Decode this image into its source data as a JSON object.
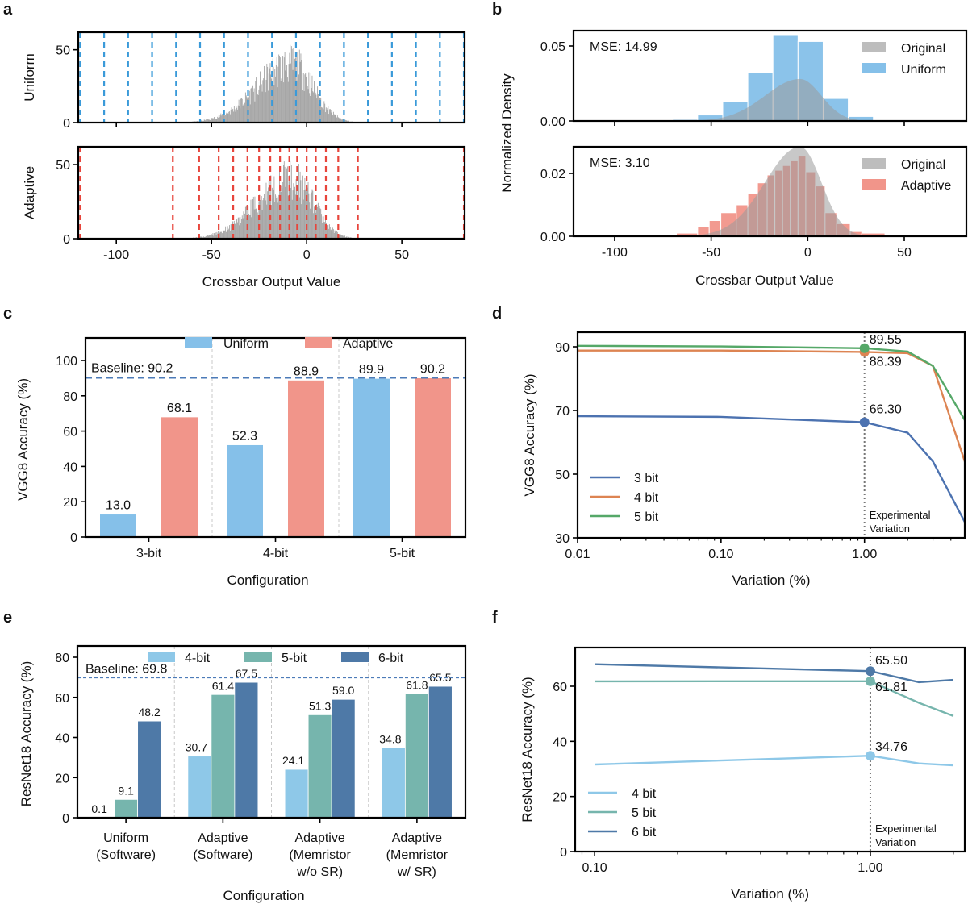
{
  "panel_labels": [
    "a",
    "b",
    "c",
    "d",
    "e",
    "f"
  ],
  "chart_data": [
    {
      "id": "a",
      "type": "bar",
      "subtype": "histogram-with-quantization-levels",
      "subplots": [
        {
          "name": "Uniform",
          "ylabel": "Uniform",
          "yticks": [
            0,
            50
          ],
          "ylim": [
            0,
            62
          ],
          "level_color": "#3a9ad9",
          "levels": [
            -119.0,
            -106.4,
            -93.8,
            -81.2,
            -68.6,
            -56.0,
            -43.4,
            -30.8,
            -18.2,
            -5.6,
            7.0,
            19.6,
            32.2,
            44.8,
            57.4,
            70.0,
            82.6
          ]
        },
        {
          "name": "Adaptive",
          "ylabel": "Adaptive",
          "yticks": [
            0,
            50
          ],
          "ylim": [
            0,
            62
          ],
          "level_color": "#e8453c",
          "levels": [
            -119.0,
            -70.3,
            -56.5,
            -46.2,
            -38.6,
            -31.1,
            -25.0,
            -19.1,
            -14.0,
            -9.1,
            -5.0,
            0.0,
            4.8,
            10.1,
            16.6,
            26.9,
            82.6
          ]
        }
      ],
      "histogram": {
        "distribution": "approx. skewed normal",
        "peak_x": -8,
        "peak_count": 60,
        "color": "#a6a6a6"
      },
      "xlabel": "Crossbar Output Value",
      "xticks": [
        -100,
        -50,
        0,
        50
      ],
      "xlim": [
        -120,
        83
      ]
    },
    {
      "id": "b",
      "type": "bar",
      "subtype": "density-histogram-overlay",
      "ylabel": "Normalized Density",
      "xlabel": "Crossbar Output Value",
      "xticks": [
        -100,
        -50,
        0,
        50
      ],
      "xlim": [
        -120,
        80
      ],
      "subplots": [
        {
          "name": "Uniform",
          "annotation": "MSE: 14.99",
          "annotation_color": "#3a9ad9",
          "yticks": [
            0.0,
            0.05
          ],
          "ytick_labels": [
            "0.00",
            "0.05"
          ],
          "ylim": [
            0,
            0.06
          ],
          "legend": [
            "Original",
            "Uniform"
          ],
          "legend_position": "top-right",
          "bar_color": "#85c0e9",
          "bin_edges": [
            -70,
            -57,
            -44,
            -31,
            -18,
            -5,
            8,
            21,
            34
          ],
          "values": [
            0.001,
            0.004,
            0.013,
            0.032,
            0.057,
            0.053,
            0.015,
            0.003
          ],
          "original_density": {
            "mean": -4,
            "peak": 0.028
          }
        },
        {
          "name": "Adaptive",
          "annotation": "MSE: 3.10",
          "annotation_color": "#e8453c",
          "yticks": [
            0.0,
            0.02
          ],
          "ytick_labels": [
            "0.00",
            "0.02"
          ],
          "ylim": [
            0,
            0.029
          ],
          "legend": [
            "Original",
            "Adaptive"
          ],
          "legend_position": "top-right",
          "bar_color": "#f1958a",
          "bin_edges": [
            -68,
            -57,
            -51,
            -45,
            -37,
            -31,
            -26,
            -21,
            -17,
            -13,
            -9,
            -5,
            -1,
            4,
            9,
            15,
            22,
            28,
            40
          ],
          "values": [
            0.001,
            0.003,
            0.005,
            0.0075,
            0.01,
            0.0135,
            0.017,
            0.0195,
            0.021,
            0.0225,
            0.024,
            0.0255,
            0.0205,
            0.016,
            0.0075,
            0.004,
            0.0015,
            0.001
          ],
          "original_density": {
            "mean": -4,
            "peak": 0.0285
          }
        }
      ]
    },
    {
      "id": "c",
      "type": "bar",
      "title": "",
      "xlabel": "Configuration",
      "ylabel": "VGG8 Accuracy (%)",
      "categories": [
        "3-bit",
        "4-bit",
        "5-bit"
      ],
      "series": [
        {
          "name": "Uniform",
          "color": "#85c0e9",
          "values": [
            13.0,
            52.3,
            89.9
          ],
          "labels": [
            "13.0",
            "52.3",
            "89.9"
          ]
        },
        {
          "name": "Adaptive",
          "color": "#f1958a",
          "values": [
            68.1,
            88.9,
            90.2
          ],
          "labels": [
            "68.1",
            "88.9",
            "90.2"
          ]
        }
      ],
      "baseline": {
        "value": 90.2,
        "label": "Baseline: 90.2",
        "color": "#4c7bb8"
      },
      "yticks": [
        0,
        20,
        40,
        60,
        80,
        100
      ],
      "ylim": [
        0,
        115
      ],
      "legend_position": "top-center"
    },
    {
      "id": "d",
      "type": "line",
      "xlabel": "Variation (%)",
      "ylabel": "VGG8 Accuracy (%)",
      "xscale": "log",
      "xticks": [
        0.01,
        0.1,
        1.0
      ],
      "xtick_labels": [
        "0.01",
        "0.10",
        "1.00"
      ],
      "xlim": [
        0.01,
        5.0
      ],
      "yticks": [
        30,
        50,
        70,
        90
      ],
      "ylim": [
        30,
        95
      ],
      "x": [
        0.01,
        0.1,
        1.0,
        2.0,
        3.0,
        5.0
      ],
      "series": [
        {
          "name": "3 bit",
          "color": "#4c72b0",
          "values": [
            68.2,
            68.0,
            66.3,
            63.0,
            54.0,
            35.0
          ]
        },
        {
          "name": "4 bit",
          "color": "#dd8452",
          "values": [
            88.8,
            88.8,
            88.39,
            88.0,
            84.0,
            54.0
          ]
        },
        {
          "name": "5 bit",
          "color": "#55a868",
          "values": [
            90.3,
            90.1,
            89.55,
            88.5,
            84.0,
            67.0
          ]
        }
      ],
      "highlight": {
        "x": 1.0,
        "labels": [
          "66.30",
          "88.39",
          "89.55"
        ]
      },
      "vline": {
        "x": 1.0,
        "label_line1": "Experimental",
        "label_line2": "Variation"
      },
      "legend_position": "bottom-left"
    },
    {
      "id": "e",
      "type": "bar",
      "xlabel": "Configuration",
      "ylabel": "ResNet18 Accuracy (%)",
      "categories": [
        [
          "Uniform",
          "(Software)"
        ],
        [
          "Adaptive",
          "(Software)"
        ],
        [
          "Adaptive",
          "(Memristor",
          "w/o SR)"
        ],
        [
          "Adaptive",
          "(Memristor",
          "w/ SR)"
        ]
      ],
      "series": [
        {
          "name": "4-bit",
          "color": "#8ec8e8",
          "values": [
            0.1,
            30.7,
            24.1,
            34.8
          ],
          "labels": [
            "0.1",
            "30.7",
            "24.1",
            "34.8"
          ]
        },
        {
          "name": "5-bit",
          "color": "#76b5ad",
          "values": [
            9.1,
            61.4,
            51.3,
            61.8
          ],
          "labels": [
            "9.1",
            "61.4",
            "51.3",
            "61.8"
          ]
        },
        {
          "name": "6-bit",
          "color": "#4e79a7",
          "values": [
            48.2,
            67.5,
            59.0,
            65.5
          ],
          "labels": [
            "48.2",
            "67.5",
            "59.0",
            "65.5"
          ]
        }
      ],
      "baseline": {
        "value": 69.8,
        "label": "Baseline: 69.8",
        "color": "#4c7bb8"
      },
      "yticks": [
        0,
        20,
        40,
        60,
        80
      ],
      "ylim": [
        0,
        85
      ],
      "legend_position": "top-center"
    },
    {
      "id": "f",
      "type": "line",
      "xlabel": "Variation (%)",
      "ylabel": "ResNet18 Accuracy (%)",
      "xscale": "log",
      "xticks": [
        0.1,
        1.0
      ],
      "xtick_labels": [
        "0.10",
        "1.00"
      ],
      "xlim": [
        0.085,
        2.2
      ],
      "yticks": [
        0,
        20,
        40,
        60
      ],
      "ylim": [
        0,
        74
      ],
      "x": [
        0.1,
        1.0,
        1.5,
        2.0
      ],
      "series": [
        {
          "name": "4 bit",
          "color": "#8ec8e8",
          "values": [
            31.6,
            34.76,
            32.0,
            31.3
          ]
        },
        {
          "name": "5 bit",
          "color": "#76b5ad",
          "values": [
            61.8,
            61.81,
            54.0,
            49.2
          ]
        },
        {
          "name": "6 bit",
          "color": "#4e79a7",
          "values": [
            68.0,
            65.5,
            61.5,
            62.3
          ]
        }
      ],
      "highlight": {
        "x": 1.0,
        "labels": [
          "34.76",
          "61.81",
          "65.50"
        ]
      },
      "vline": {
        "x": 1.0,
        "label_line1": "Experimental",
        "label_line2": "Variation"
      },
      "legend_position": "bottom-left"
    }
  ]
}
